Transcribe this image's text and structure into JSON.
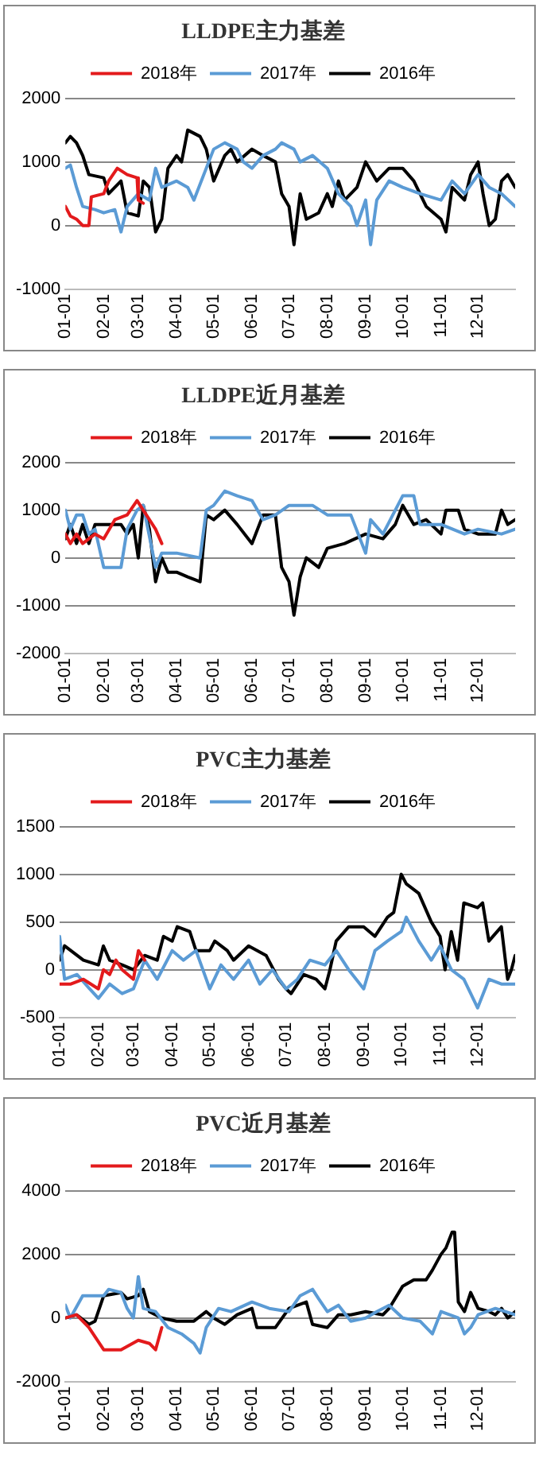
{
  "chart_data": [
    {
      "type": "line",
      "title": "LLDPE主力基差",
      "legend": "top",
      "grid": "y",
      "marker": "none",
      "line_style": "solid",
      "xlim": [
        "--01-01",
        "--12-31"
      ],
      "xticks": [
        {
          "value": "--01-01",
          "label": "01-01"
        },
        {
          "value": "--02-01",
          "label": "02-01"
        },
        {
          "value": "--03-01",
          "label": "03-01"
        },
        {
          "value": "--04-01",
          "label": "04-01"
        },
        {
          "value": "--05-01",
          "label": "05-01"
        },
        {
          "value": "--06-01",
          "label": "06-01"
        },
        {
          "value": "--07-01",
          "label": "07-01"
        },
        {
          "value": "--08-01",
          "label": "08-01"
        },
        {
          "value": "--09-01",
          "label": "09-01"
        },
        {
          "value": "--10-01",
          "label": "10-01"
        },
        {
          "value": "--11-01",
          "label": "11-01"
        },
        {
          "value": "--12-01",
          "label": "12-01"
        }
      ],
      "ylim": [
        -1000,
        2000
      ],
      "yticks": [
        -1000,
        0,
        1000,
        2000
      ],
      "series": [
        {
          "name": "2018年",
          "color": "#e31a1c",
          "x": [
            "--01-01",
            "--01-05",
            "--01-10",
            "--01-15",
            "--01-20",
            "--01-22",
            "--02-01",
            "--02-05",
            "--02-12",
            "--02-20",
            "--02-28",
            "--03-01",
            "--03-05"
          ],
          "values": [
            300,
            150,
            100,
            0,
            0,
            450,
            500,
            700,
            900,
            800,
            750,
            400,
            350
          ]
        },
        {
          "name": "2017年",
          "color": "#5b9bd5",
          "x": [
            "--01-01",
            "--01-05",
            "--01-10",
            "--01-15",
            "--01-25",
            "--02-01",
            "--02-10",
            "--02-15",
            "--02-20",
            "--03-01",
            "--03-10",
            "--03-15",
            "--03-20",
            "--04-01",
            "--04-10",
            "--04-15",
            "--04-25",
            "--05-01",
            "--05-10",
            "--05-20",
            "--05-25",
            "--06-01",
            "--06-10",
            "--06-20",
            "--06-25",
            "--07-05",
            "--07-10",
            "--07-20",
            "--08-01",
            "--08-10",
            "--08-20",
            "--08-25",
            "--09-01",
            "--09-05",
            "--09-10",
            "--09-20",
            "--10-01",
            "--10-15",
            "--11-01",
            "--11-10",
            "--11-20",
            "--12-01",
            "--12-10",
            "--12-20",
            "--12-31"
          ],
          "values": [
            900,
            950,
            600,
            300,
            250,
            200,
            250,
            -100,
            300,
            500,
            400,
            900,
            600,
            700,
            600,
            400,
            900,
            1200,
            1300,
            1200,
            1000,
            900,
            1100,
            1200,
            1300,
            1200,
            1000,
            1100,
            900,
            500,
            300,
            0,
            400,
            -300,
            400,
            700,
            600,
            500,
            400,
            700,
            500,
            800,
            600,
            500,
            300
          ]
        },
        {
          "name": "2016年",
          "color": "#000000",
          "x": [
            "--01-01",
            "--01-05",
            "--01-10",
            "--01-15",
            "--01-20",
            "--02-01",
            "--02-05",
            "--02-15",
            "--02-20",
            "--03-01",
            "--03-05",
            "--03-10",
            "--03-15",
            "--03-20",
            "--03-25",
            "--04-01",
            "--04-05",
            "--04-10",
            "--04-20",
            "--04-25",
            "--05-01",
            "--05-10",
            "--05-15",
            "--05-20",
            "--06-01",
            "--06-10",
            "--06-20",
            "--06-25",
            "--07-01",
            "--07-05",
            "--07-10",
            "--07-15",
            "--07-25",
            "--08-01",
            "--08-05",
            "--08-10",
            "--08-15",
            "--08-25",
            "--09-01",
            "--09-10",
            "--09-20",
            "--10-01",
            "--10-10",
            "--10-20",
            "--11-01",
            "--11-05",
            "--11-10",
            "--11-20",
            "--11-25",
            "--12-01",
            "--12-05",
            "--12-10",
            "--12-15",
            "--12-20",
            "--12-25",
            "--12-31"
          ],
          "values": [
            1300,
            1400,
            1300,
            1100,
            800,
            750,
            500,
            700,
            200,
            150,
            700,
            600,
            -100,
            100,
            900,
            1100,
            1000,
            1500,
            1400,
            1200,
            700,
            1100,
            1200,
            1000,
            1200,
            1100,
            1000,
            500,
            300,
            -300,
            500,
            100,
            200,
            500,
            300,
            700,
            400,
            600,
            1000,
            700,
            900,
            900,
            700,
            300,
            100,
            -100,
            600,
            400,
            800,
            1000,
            500,
            0,
            100,
            700,
            800,
            600
          ]
        }
      ]
    },
    {
      "type": "line",
      "title": "LLDPE近月基差",
      "legend": "top",
      "grid": "y",
      "marker": "none",
      "line_style": "solid",
      "xlim": [
        "--01-01",
        "--12-31"
      ],
      "xticks": [
        {
          "value": "--01-01",
          "label": "01-01"
        },
        {
          "value": "--02-01",
          "label": "02-01"
        },
        {
          "value": "--03-01",
          "label": "03-01"
        },
        {
          "value": "--04-01",
          "label": "04-01"
        },
        {
          "value": "--05-01",
          "label": "05-01"
        },
        {
          "value": "--06-01",
          "label": "06-01"
        },
        {
          "value": "--07-01",
          "label": "07-01"
        },
        {
          "value": "--08-01",
          "label": "08-01"
        },
        {
          "value": "--09-01",
          "label": "09-01"
        },
        {
          "value": "--10-01",
          "label": "10-01"
        },
        {
          "value": "--11-01",
          "label": "11-01"
        },
        {
          "value": "--12-01",
          "label": "12-01"
        }
      ],
      "ylim": [
        -2000,
        2000
      ],
      "yticks": [
        -2000,
        -1000,
        0,
        1000,
        2000
      ],
      "series": [
        {
          "name": "2018年",
          "color": "#e31a1c",
          "x": [
            "--01-01",
            "--01-05",
            "--01-10",
            "--01-15",
            "--01-25",
            "--02-01",
            "--02-10",
            "--02-20",
            "--02-28",
            "--03-05",
            "--03-15",
            "--03-20"
          ],
          "values": [
            500,
            300,
            500,
            300,
            500,
            400,
            800,
            900,
            1200,
            1000,
            600,
            300
          ]
        },
        {
          "name": "2017年",
          "color": "#5b9bd5",
          "x": [
            "--01-01",
            "--01-05",
            "--01-10",
            "--01-15",
            "--01-20",
            "--01-25",
            "--02-01",
            "--02-10",
            "--02-15",
            "--02-20",
            "--02-28",
            "--03-05",
            "--03-15",
            "--03-20",
            "--04-01",
            "--04-20",
            "--04-25",
            "--05-01",
            "--05-10",
            "--05-20",
            "--06-01",
            "--06-10",
            "--06-20",
            "--07-01",
            "--07-20",
            "--08-01",
            "--08-20",
            "--09-01",
            "--09-05",
            "--09-15",
            "--10-01",
            "--10-10",
            "--10-15",
            "--11-01",
            "--11-20",
            "--12-01",
            "--12-20",
            "--12-31"
          ],
          "values": [
            1000,
            600,
            900,
            900,
            500,
            600,
            -200,
            -200,
            -200,
            600,
            1000,
            1100,
            -200,
            100,
            100,
            0,
            1000,
            1100,
            1400,
            1300,
            1200,
            800,
            900,
            1100,
            1100,
            900,
            900,
            100,
            800,
            500,
            1300,
            1300,
            700,
            700,
            500,
            600,
            500,
            600
          ]
        },
        {
          "name": "2016年",
          "color": "#000000",
          "x": [
            "--01-01",
            "--01-05",
            "--01-10",
            "--01-15",
            "--01-20",
            "--01-25",
            "--02-01",
            "--02-15",
            "--02-20",
            "--02-25",
            "--03-01",
            "--03-05",
            "--03-10",
            "--03-15",
            "--03-20",
            "--03-25",
            "--04-01",
            "--04-10",
            "--04-20",
            "--04-25",
            "--05-01",
            "--05-10",
            "--05-20",
            "--06-01",
            "--06-10",
            "--06-20",
            "--06-25",
            "--07-01",
            "--07-05",
            "--07-10",
            "--07-15",
            "--07-25",
            "--08-01",
            "--08-15",
            "--09-01",
            "--09-15",
            "--09-25",
            "--10-01",
            "--10-10",
            "--10-20",
            "--11-01",
            "--11-05",
            "--11-15",
            "--11-20",
            "--12-01",
            "--12-15",
            "--12-20",
            "--12-25",
            "--12-31"
          ],
          "values": [
            400,
            700,
            300,
            700,
            300,
            700,
            700,
            700,
            500,
            700,
            0,
            1100,
            600,
            -500,
            0,
            -300,
            -300,
            -400,
            -500,
            900,
            800,
            1000,
            700,
            300,
            900,
            900,
            -200,
            -500,
            -1200,
            -400,
            0,
            -200,
            200,
            300,
            500,
            400,
            700,
            1100,
            700,
            800,
            500,
            1000,
            1000,
            600,
            500,
            500,
            1000,
            700,
            800
          ]
        }
      ]
    },
    {
      "type": "line",
      "title": "PVC主力基差",
      "legend": "top",
      "grid": "y",
      "marker": "none",
      "line_style": "solid",
      "xlim": [
        "--01-01",
        "--12-31"
      ],
      "xticks": [
        {
          "value": "--01-01",
          "label": "01-01"
        },
        {
          "value": "--02-01",
          "label": "02-01"
        },
        {
          "value": "--03-01",
          "label": "03-01"
        },
        {
          "value": "--04-01",
          "label": "04-01"
        },
        {
          "value": "--05-01",
          "label": "05-01"
        },
        {
          "value": "--06-01",
          "label": "06-01"
        },
        {
          "value": "--07-01",
          "label": "07-01"
        },
        {
          "value": "--08-01",
          "label": "08-01"
        },
        {
          "value": "--09-01",
          "label": "09-01"
        },
        {
          "value": "--10-01",
          "label": "10-01"
        },
        {
          "value": "--11-01",
          "label": "11-01"
        },
        {
          "value": "--12-01",
          "label": "12-01"
        }
      ],
      "ylim": [
        -500,
        1500
      ],
      "yticks": [
        -500,
        0,
        500,
        1000,
        1500
      ],
      "series": [
        {
          "name": "2018年",
          "color": "#e31a1c",
          "x": [
            "--01-01",
            "--01-10",
            "--01-20",
            "--02-01",
            "--02-05",
            "--02-10",
            "--02-15",
            "--02-20",
            "--03-01",
            "--03-05",
            "--03-10"
          ],
          "values": [
            -150,
            -150,
            -100,
            -200,
            0,
            -50,
            100,
            0,
            -100,
            200,
            100
          ]
        },
        {
          "name": "2017年",
          "color": "#5b9bd5",
          "x": [
            "--01-01",
            "--01-05",
            "--01-15",
            "--01-25",
            "--02-01",
            "--02-10",
            "--02-20",
            "--03-01",
            "--03-10",
            "--03-20",
            "--04-01",
            "--04-10",
            "--04-20",
            "--05-01",
            "--05-10",
            "--05-20",
            "--06-01",
            "--06-10",
            "--06-20",
            "--07-01",
            "--07-10",
            "--07-20",
            "--08-01",
            "--08-10",
            "--08-20",
            "--09-01",
            "--09-10",
            "--09-20",
            "--10-01",
            "--10-05",
            "--10-15",
            "--10-25",
            "--11-01",
            "--11-10",
            "--11-20",
            "--12-01",
            "--12-10",
            "--12-20",
            "--12-31"
          ],
          "values": [
            350,
            -100,
            -50,
            -200,
            -300,
            -150,
            -250,
            -200,
            100,
            -100,
            200,
            100,
            200,
            -200,
            50,
            -100,
            100,
            -150,
            0,
            -200,
            -100,
            100,
            50,
            200,
            0,
            -200,
            200,
            300,
            400,
            550,
            300,
            100,
            250,
            0,
            -100,
            -400,
            -100,
            -150,
            -150
          ]
        },
        {
          "name": "2016年",
          "color": "#000000",
          "x": [
            "--01-01",
            "--01-05",
            "--01-10",
            "--01-20",
            "--02-01",
            "--02-05",
            "--02-10",
            "--02-20",
            "--03-01",
            "--03-10",
            "--03-20",
            "--03-25",
            "--04-01",
            "--04-05",
            "--04-15",
            "--04-20",
            "--05-01",
            "--05-05",
            "--05-15",
            "--05-20",
            "--06-01",
            "--06-15",
            "--06-25",
            "--07-01",
            "--07-05",
            "--07-15",
            "--07-25",
            "--08-01",
            "--08-05",
            "--08-10",
            "--08-20",
            "--09-01",
            "--09-10",
            "--09-20",
            "--09-25",
            "--10-01",
            "--10-05",
            "--10-15",
            "--10-25",
            "--11-01",
            "--11-05",
            "--11-10",
            "--11-15",
            "--11-20",
            "--12-01",
            "--12-05",
            "--12-10",
            "--12-20",
            "--12-25",
            "--12-28",
            "--12-31"
          ],
          "values": [
            100,
            250,
            200,
            100,
            50,
            250,
            100,
            50,
            0,
            150,
            100,
            350,
            300,
            450,
            400,
            200,
            200,
            300,
            200,
            100,
            250,
            150,
            -100,
            -200,
            -250,
            -50,
            -100,
            -200,
            0,
            300,
            450,
            450,
            350,
            550,
            600,
            1000,
            900,
            800,
            500,
            350,
            0,
            400,
            100,
            700,
            650,
            700,
            300,
            450,
            -100,
            0,
            150
          ]
        }
      ]
    },
    {
      "type": "line",
      "title": "PVC近月基差",
      "legend": "top",
      "grid": "y",
      "marker": "none",
      "line_style": "solid",
      "xlim": [
        "--01-01",
        "--12-31"
      ],
      "xticks": [
        {
          "value": "--01-01",
          "label": "01-01"
        },
        {
          "value": "--02-01",
          "label": "02-01"
        },
        {
          "value": "--03-01",
          "label": "03-01"
        },
        {
          "value": "--04-01",
          "label": "04-01"
        },
        {
          "value": "--05-01",
          "label": "05-01"
        },
        {
          "value": "--06-01",
          "label": "06-01"
        },
        {
          "value": "--07-01",
          "label": "07-01"
        },
        {
          "value": "--08-01",
          "label": "08-01"
        },
        {
          "value": "--09-01",
          "label": "09-01"
        },
        {
          "value": "--10-01",
          "label": "10-01"
        },
        {
          "value": "--11-01",
          "label": "11-01"
        },
        {
          "value": "--12-01",
          "label": "12-01"
        }
      ],
      "ylim": [
        -2000,
        4000
      ],
      "yticks": [
        -2000,
        0,
        2000,
        4000
      ],
      "series": [
        {
          "name": "2018年",
          "color": "#e31a1c",
          "x": [
            "--01-01",
            "--01-10",
            "--01-20",
            "--02-01",
            "--02-15",
            "--03-01",
            "--03-10",
            "--03-15",
            "--03-20"
          ],
          "values": [
            0,
            100,
            -300,
            -1000,
            -1000,
            -700,
            -800,
            -1000,
            -300
          ]
        },
        {
          "name": "2017年",
          "color": "#5b9bd5",
          "x": [
            "--01-01",
            "--01-05",
            "--01-15",
            "--02-01",
            "--02-05",
            "--02-15",
            "--02-20",
            "--02-25",
            "--03-01",
            "--03-05",
            "--03-15",
            "--03-25",
            "--04-05",
            "--04-15",
            "--04-20",
            "--04-25",
            "--05-05",
            "--05-15",
            "--06-01",
            "--06-15",
            "--07-01",
            "--07-10",
            "--07-20",
            "--07-25",
            "--08-01",
            "--08-10",
            "--08-20",
            "--09-01",
            "--09-10",
            "--09-20",
            "--10-01",
            "--10-15",
            "--10-25",
            "--11-01",
            "--11-15",
            "--11-20",
            "--11-25",
            "--12-01",
            "--12-15",
            "--12-31"
          ],
          "values": [
            400,
            0,
            700,
            700,
            900,
            800,
            300,
            0,
            1300,
            300,
            200,
            -300,
            -500,
            -800,
            -1100,
            -300,
            300,
            200,
            500,
            300,
            200,
            700,
            900,
            600,
            200,
            400,
            -100,
            0,
            200,
            400,
            0,
            -100,
            -500,
            200,
            0,
            -500,
            -300,
            100,
            300,
            100
          ]
        },
        {
          "name": "2016年",
          "color": "#000000",
          "x": [
            "--01-01",
            "--01-10",
            "--01-20",
            "--01-25",
            "--02-01",
            "--02-15",
            "--02-20",
            "--03-01",
            "--03-05",
            "--03-10",
            "--03-20",
            "--04-01",
            "--04-15",
            "--04-25",
            "--05-01",
            "--05-10",
            "--05-20",
            "--06-01",
            "--06-05",
            "--06-20",
            "--07-01",
            "--07-15",
            "--07-20",
            "--08-01",
            "--08-10",
            "--08-20",
            "--09-01",
            "--09-15",
            "--09-20",
            "--10-01",
            "--10-10",
            "--10-20",
            "--10-25",
            "--11-01",
            "--11-05",
            "--11-10",
            "--11-12",
            "--11-15",
            "--11-20",
            "--11-25",
            "--12-01",
            "--12-10",
            "--12-15",
            "--12-20",
            "--12-25",
            "--12-31"
          ],
          "values": [
            0,
            100,
            -200,
            -100,
            700,
            800,
            600,
            700,
            900,
            200,
            0,
            -100,
            -100,
            200,
            0,
            -200,
            100,
            300,
            -300,
            -300,
            300,
            500,
            -200,
            -300,
            100,
            100,
            200,
            100,
            300,
            1000,
            1200,
            1200,
            1500,
            2000,
            2200,
            2700,
            2700,
            500,
            200,
            800,
            300,
            200,
            100,
            300,
            0,
            200
          ]
        }
      ]
    }
  ]
}
